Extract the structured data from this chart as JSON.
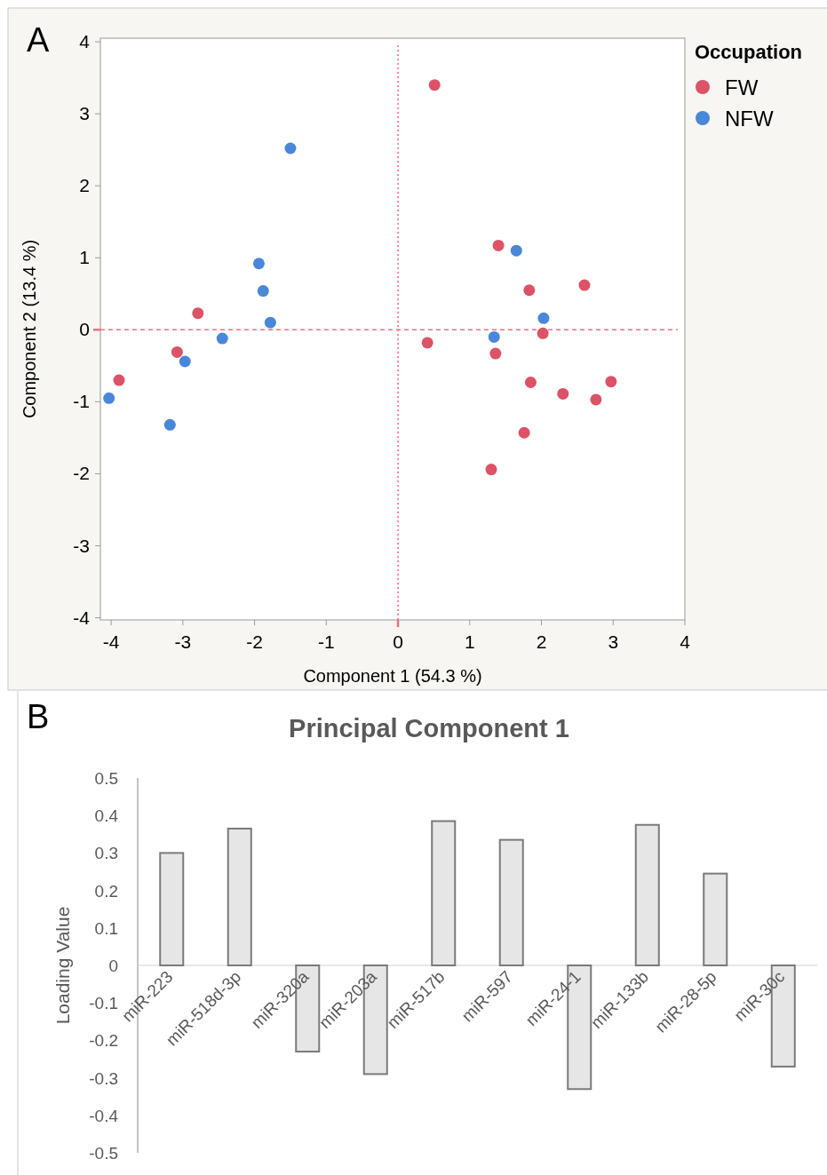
{
  "chart_data": [
    {
      "type": "scatter",
      "xlabel": "Component 1  (54.3 %)",
      "ylabel": "Component 2  (13.4 %)",
      "legend_title": "Occupation",
      "legend": "right",
      "marker": "circle",
      "annotations": [
        "A"
      ],
      "xlim": [
        -4.15,
        4
      ],
      "ylim": [
        -4.03,
        4.05
      ],
      "xticks": [
        -4,
        -3,
        -2,
        -1,
        0,
        1,
        2,
        3,
        4
      ],
      "yticks": [
        -4,
        -3,
        -2,
        -1,
        0,
        1,
        2,
        3,
        4
      ],
      "ref_lines": [
        {
          "axis": "x",
          "value": 0,
          "color": "#f0707f",
          "line_style": "dotted"
        },
        {
          "axis": "y",
          "value": 0,
          "color": "#f0707f",
          "line_style": "dashed"
        }
      ],
      "series": [
        {
          "name": "FW",
          "color": "#dc5266",
          "x": [
            0.51,
            0.41,
            1.4,
            1.83,
            2.6,
            2.02,
            1.36,
            1.85,
            2.3,
            2.76,
            2.97,
            1.76,
            1.3,
            -3.89,
            -3.08,
            -2.79
          ],
          "values": [
            3.4,
            -0.18,
            1.17,
            0.55,
            0.62,
            -0.05,
            -0.33,
            -0.73,
            -0.89,
            -0.97,
            -0.72,
            -1.43,
            -1.94,
            -0.7,
            -0.31,
            0.23
          ]
        },
        {
          "name": "NFW",
          "color": "#4a87d9",
          "x": [
            -1.5,
            -1.94,
            -1.88,
            -1.78,
            -2.45,
            -2.97,
            -4.03,
            -3.18,
            1.65,
            1.34,
            2.03
          ],
          "values": [
            2.52,
            0.92,
            0.54,
            0.1,
            -0.12,
            -0.44,
            -0.95,
            -1.32,
            1.1,
            -0.1,
            0.16
          ]
        }
      ]
    },
    {
      "type": "bar",
      "title": "Principal Component 1",
      "ylabel": "Loading Value",
      "annotations": [
        "B"
      ],
      "categories": [
        "miR-223",
        "miR-518d-3p",
        "miR-320a",
        "miR-203a",
        "miR-517b",
        "miR-597",
        "miR-24-1",
        "miR-133b",
        "miR-28-5p",
        "miR-30c"
      ],
      "values": [
        0.3,
        0.365,
        -0.23,
        -0.29,
        0.385,
        0.335,
        -0.33,
        0.375,
        0.245,
        -0.27
      ],
      "color": "#e6e6e6",
      "ylim": [
        -0.5,
        0.5
      ],
      "yticks": [
        0.5,
        0.4,
        0.3,
        0.2,
        0.1,
        0,
        -0.1,
        -0.2,
        -0.3,
        -0.4,
        -0.5
      ]
    }
  ]
}
